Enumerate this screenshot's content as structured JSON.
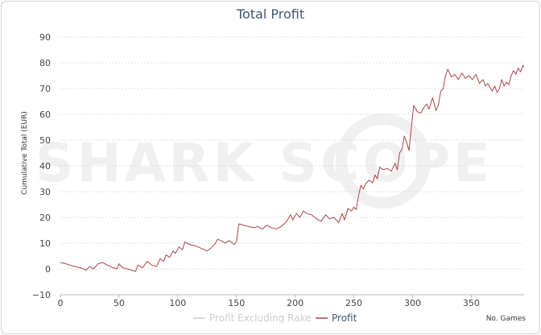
{
  "chart_data": {
    "type": "line",
    "title": "Total Profit",
    "ylabel": "Cumulative Total (EUR)",
    "xlabel": "No. Games",
    "watermark": "SHARK SCOPE",
    "xlim": [
      0,
      395
    ],
    "ylim": [
      -10,
      90
    ],
    "x_ticks": [
      0,
      50,
      100,
      150,
      200,
      250,
      300,
      350
    ],
    "y_ticks": [
      -10,
      0,
      10,
      20,
      30,
      40,
      50,
      60,
      70,
      80,
      90
    ],
    "grid": true,
    "legend_position": "bottom-center",
    "colors": {
      "profit": "#aa4643",
      "profit_excluding_rake": "#cccccc",
      "title": "#3e576f",
      "grid": "#dddddd",
      "watermark": "#f0f0f0"
    },
    "series": [
      {
        "name": "Profit Excluding Rake",
        "points": []
      },
      {
        "name": "Profit",
        "points": [
          [
            0,
            2.5
          ],
          [
            5,
            2.0
          ],
          [
            10,
            1.2
          ],
          [
            14,
            0.8
          ],
          [
            18,
            0.3
          ],
          [
            22,
            -0.5
          ],
          [
            25,
            1.0
          ],
          [
            28,
            0.0
          ],
          [
            32,
            2.0
          ],
          [
            36,
            2.5
          ],
          [
            40,
            1.5
          ],
          [
            45,
            0.5
          ],
          [
            48,
            0.0
          ],
          [
            50,
            2.0
          ],
          [
            53,
            0.5
          ],
          [
            57,
            0.0
          ],
          [
            61,
            -0.5
          ],
          [
            64,
            -1.0
          ],
          [
            66,
            1.5
          ],
          [
            70,
            0.5
          ],
          [
            74,
            3.0
          ],
          [
            78,
            1.5
          ],
          [
            82,
            1.0
          ],
          [
            85,
            4.0
          ],
          [
            88,
            3.0
          ],
          [
            90,
            5.5
          ],
          [
            93,
            4.5
          ],
          [
            96,
            7.0
          ],
          [
            98,
            6.0
          ],
          [
            101,
            8.5
          ],
          [
            104,
            7.5
          ],
          [
            106,
            10.5
          ],
          [
            110,
            9.5
          ],
          [
            115,
            9.0
          ],
          [
            120,
            8.0
          ],
          [
            125,
            7.0
          ],
          [
            128,
            8.0
          ],
          [
            132,
            10.0
          ],
          [
            134,
            11.5
          ],
          [
            137,
            11.0
          ],
          [
            140,
            10.0
          ],
          [
            144,
            11.0
          ],
          [
            148,
            9.5
          ],
          [
            150,
            10.5
          ],
          [
            152,
            17.5
          ],
          [
            156,
            17.0
          ],
          [
            160,
            16.5
          ],
          [
            165,
            16.0
          ],
          [
            168,
            16.5
          ],
          [
            172,
            15.5
          ],
          [
            176,
            17.0
          ],
          [
            180,
            16.0
          ],
          [
            184,
            15.5
          ],
          [
            188,
            16.5
          ],
          [
            192,
            18.0
          ],
          [
            196,
            21.0
          ],
          [
            198,
            19.0
          ],
          [
            201,
            21.5
          ],
          [
            204,
            20.0
          ],
          [
            207,
            22.5
          ],
          [
            210,
            21.5
          ],
          [
            214,
            21.0
          ],
          [
            218,
            19.5
          ],
          [
            222,
            18.5
          ],
          [
            226,
            21.0
          ],
          [
            229,
            19.5
          ],
          [
            233,
            20.0
          ],
          [
            237,
            18.0
          ],
          [
            240,
            21.5
          ],
          [
            242,
            19.0
          ],
          [
            245,
            23.5
          ],
          [
            248,
            22.5
          ],
          [
            250,
            24.0
          ],
          [
            252,
            23.0
          ],
          [
            254,
            28.5
          ],
          [
            256,
            32.5
          ],
          [
            258,
            31.0
          ],
          [
            260,
            33.0
          ],
          [
            263,
            34.5
          ],
          [
            266,
            33.5
          ],
          [
            268,
            36.5
          ],
          [
            270,
            35.0
          ],
          [
            272,
            39.5
          ],
          [
            275,
            38.5
          ],
          [
            278,
            39.0
          ],
          [
            282,
            38.0
          ],
          [
            285,
            41.0
          ],
          [
            287,
            38.5
          ],
          [
            289,
            45.0
          ],
          [
            291,
            46.5
          ],
          [
            293,
            51.5
          ],
          [
            295,
            49.0
          ],
          [
            297,
            46.0
          ],
          [
            299,
            55.0
          ],
          [
            301,
            63.5
          ],
          [
            304,
            61.0
          ],
          [
            307,
            60.5
          ],
          [
            310,
            63.0
          ],
          [
            312,
            64.0
          ],
          [
            314,
            62.0
          ],
          [
            317,
            66.5
          ],
          [
            320,
            61.5
          ],
          [
            322,
            63.5
          ],
          [
            324,
            69.0
          ],
          [
            326,
            70.0
          ],
          [
            328,
            75.0
          ],
          [
            330,
            77.5
          ],
          [
            333,
            74.5
          ],
          [
            336,
            75.5
          ],
          [
            339,
            73.5
          ],
          [
            342,
            76.0
          ],
          [
            345,
            74.0
          ],
          [
            348,
            75.0
          ],
          [
            351,
            73.5
          ],
          [
            354,
            75.5
          ],
          [
            357,
            72.0
          ],
          [
            360,
            73.5
          ],
          [
            362,
            71.0
          ],
          [
            364,
            72.0
          ],
          [
            366,
            70.5
          ],
          [
            368,
            69.0
          ],
          [
            370,
            71.0
          ],
          [
            372,
            68.5
          ],
          [
            374,
            70.0
          ],
          [
            376,
            73.5
          ],
          [
            378,
            71.0
          ],
          [
            380,
            72.5
          ],
          [
            382,
            71.5
          ],
          [
            384,
            75.0
          ],
          [
            386,
            77.0
          ],
          [
            388,
            75.5
          ],
          [
            390,
            78.0
          ],
          [
            392,
            76.5
          ],
          [
            394,
            79.0
          ],
          [
            395,
            78.5
          ]
        ]
      }
    ]
  }
}
